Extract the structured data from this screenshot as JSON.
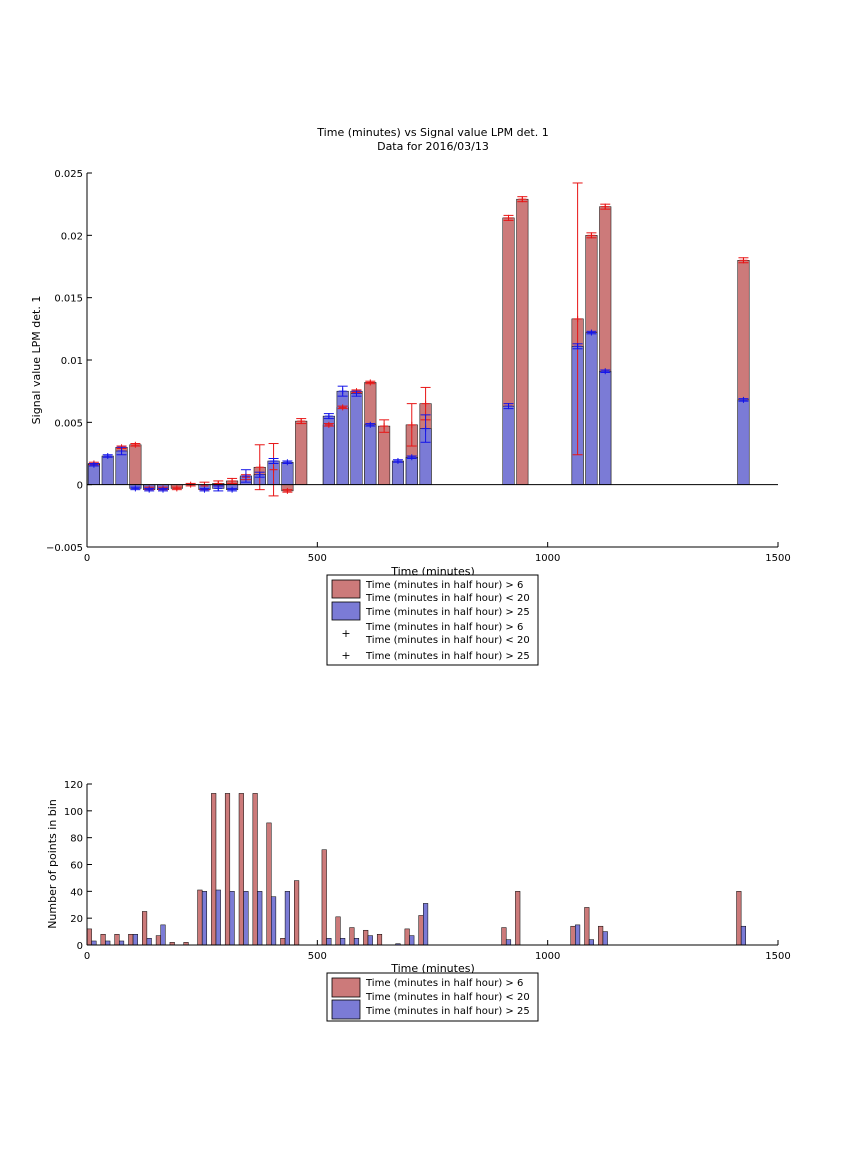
{
  "figure": {
    "background": "#ffffff"
  },
  "colors": {
    "red_bar": "#cc7a7a",
    "blue_bar": "#7b7bd6",
    "red_err": "#e81414",
    "blue_err": "#1414e8",
    "axis": "#000000"
  },
  "chart_data": [
    {
      "type": "bar",
      "title": "Time (minutes) vs Signal value LPM det. 1",
      "subtitle": "Data for 2016/03/13",
      "xlabel": "Time (minutes)",
      "ylabel": "Signal value LPM det. 1",
      "xlim": [
        0,
        1500
      ],
      "ylim": [
        -0.005,
        0.025
      ],
      "xticks": [
        0,
        500,
        1000,
        1500
      ],
      "xtick_labels": [
        "0",
        "500",
        "1000",
        "1500"
      ],
      "yticks": [
        -0.005,
        0,
        0.005,
        0.01,
        0.015,
        0.02,
        0.025
      ],
      "ytick_labels": [
        "−0.005",
        "0",
        "0.005",
        "0.01",
        "0.015",
        "0.02",
        "0.025"
      ],
      "legend_position": "bottom-center (below axes)",
      "legend": [
        {
          "kind": "patch",
          "color_key": "red_bar",
          "lines": [
            "Time (minutes in half hour) > 6",
            "Time (minutes in half hour) < 20"
          ]
        },
        {
          "kind": "patch",
          "color_key": "blue_bar",
          "lines": [
            "Time (minutes in half hour) > 25"
          ]
        },
        {
          "kind": "marker",
          "marker": "+",
          "color_key": "red_err",
          "lines": [
            "Time (minutes in half hour) > 6",
            "Time (minutes in half hour) < 20"
          ]
        },
        {
          "kind": "marker",
          "marker": "+",
          "color_key": "blue_err",
          "lines": [
            "Time (minutes in half hour) > 25"
          ]
        }
      ],
      "bar_width": 25,
      "series": [
        {
          "name": "Time (minutes in half hour) > 6 and < 20",
          "color_key": "red_bar",
          "err_color_key": "red_err",
          "points": [
            {
              "x": 15,
              "y": 0.0017,
              "err": 0.0001
            },
            {
              "x": 75,
              "y": 0.003,
              "err": 0.0001
            },
            {
              "x": 105,
              "y": 0.0032,
              "err": 0.0001
            },
            {
              "x": 135,
              "y": -0.0003,
              "err": 0.0001
            },
            {
              "x": 165,
              "y": -0.0003,
              "err": 0.0001
            },
            {
              "x": 195,
              "y": -0.0003,
              "err": 0.0001
            },
            {
              "x": 225,
              "y": 0.0,
              "err": 0.0001
            },
            {
              "x": 255,
              "y": -0.0001,
              "err": 0.0003
            },
            {
              "x": 285,
              "y": 0.0001,
              "err": 0.0002
            },
            {
              "x": 315,
              "y": 0.0003,
              "err": 0.0002
            },
            {
              "x": 345,
              "y": 0.0006,
              "err": 0.0002
            },
            {
              "x": 375,
              "y": 0.0014,
              "err": 0.0018
            },
            {
              "x": 405,
              "y": 0.0012,
              "err": 0.0021
            },
            {
              "x": 435,
              "y": -0.0005,
              "err": 0.0001
            },
            {
              "x": 465,
              "y": 0.0051,
              "err": 0.0002
            },
            {
              "x": 525,
              "y": 0.0048,
              "err": 0.0001
            },
            {
              "x": 555,
              "y": 0.0062,
              "err": 0.0001
            },
            {
              "x": 585,
              "y": 0.0075,
              "err": 0.0001
            },
            {
              "x": 615,
              "y": 0.0082,
              "err": 0.0001
            },
            {
              "x": 645,
              "y": 0.0047,
              "err": 0.0005
            },
            {
              "x": 705,
              "y": 0.0048,
              "err": 0.0017
            },
            {
              "x": 735,
              "y": 0.0065,
              "err": 0.0013
            },
            {
              "x": 915,
              "y": 0.0214,
              "err": 0.0002
            },
            {
              "x": 945,
              "y": 0.0229,
              "err": 0.0002
            },
            {
              "x": 1065,
              "y": 0.0133,
              "err": 0.0109
            },
            {
              "x": 1095,
              "y": 0.02,
              "err": 0.0002
            },
            {
              "x": 1125,
              "y": 0.0223,
              "err": 0.0002
            },
            {
              "x": 1425,
              "y": 0.018,
              "err": 0.0002
            }
          ]
        },
        {
          "name": "Time (minutes in half hour) > 25",
          "color_key": "blue_bar",
          "err_color_key": "blue_err",
          "points": [
            {
              "x": 15,
              "y": 0.0016,
              "err": 0.0001
            },
            {
              "x": 45,
              "y": 0.0023,
              "err": 0.0001
            },
            {
              "x": 75,
              "y": 0.0027,
              "err": 0.0003
            },
            {
              "x": 105,
              "y": -0.0003,
              "err": 0.0001
            },
            {
              "x": 135,
              "y": -0.0004,
              "err": 0.0001
            },
            {
              "x": 165,
              "y": -0.0004,
              "err": 0.0001
            },
            {
              "x": 255,
              "y": -0.0004,
              "err": 0.0001
            },
            {
              "x": 285,
              "y": -0.0003,
              "err": 0.0002
            },
            {
              "x": 315,
              "y": -0.0004,
              "err": 0.0001
            },
            {
              "x": 345,
              "y": 0.0007,
              "err": 0.0005
            },
            {
              "x": 375,
              "y": 0.0008,
              "err": 0.0002
            },
            {
              "x": 405,
              "y": 0.0019,
              "err": 0.0002
            },
            {
              "x": 435,
              "y": 0.0018,
              "err": 0.0001
            },
            {
              "x": 525,
              "y": 0.0055,
              "err": 0.0002
            },
            {
              "x": 555,
              "y": 0.0075,
              "err": 0.0004
            },
            {
              "x": 585,
              "y": 0.0073,
              "err": 0.0002
            },
            {
              "x": 615,
              "y": 0.0048,
              "err": 0.0001
            },
            {
              "x": 675,
              "y": 0.0019,
              "err": 0.0001
            },
            {
              "x": 705,
              "y": 0.0022,
              "err": 0.0001
            },
            {
              "x": 735,
              "y": 0.0045,
              "err": 0.0011
            },
            {
              "x": 915,
              "y": 0.0063,
              "err": 0.0002
            },
            {
              "x": 1065,
              "y": 0.0111,
              "err": 0.0002
            },
            {
              "x": 1095,
              "y": 0.0122,
              "err": 0.0001
            },
            {
              "x": 1125,
              "y": 0.0091,
              "err": 0.0001
            },
            {
              "x": 1425,
              "y": 0.0068,
              "err": 0.0001
            }
          ]
        }
      ]
    },
    {
      "type": "bar",
      "title": "",
      "xlabel": "Time (minutes)",
      "ylabel": "Number of points in bin",
      "xlim": [
        0,
        1500
      ],
      "ylim": [
        0,
        120
      ],
      "xticks": [
        0,
        500,
        1000,
        1500
      ],
      "xtick_labels": [
        "0",
        "500",
        "1000",
        "1500"
      ],
      "yticks": [
        0,
        20,
        40,
        60,
        80,
        100,
        120
      ],
      "ytick_labels": [
        "0",
        "20",
        "40",
        "60",
        "80",
        "100",
        "120"
      ],
      "legend_position": "bottom-center (below axes)",
      "legend": [
        {
          "kind": "patch",
          "color_key": "red_bar",
          "lines": [
            "Time (minutes in half hour) > 6",
            "Time (minutes in half hour) < 20"
          ]
        },
        {
          "kind": "patch",
          "color_key": "blue_bar",
          "lines": [
            "Time (minutes in half hour) > 25"
          ]
        }
      ],
      "bar_width": 10,
      "series": [
        {
          "name": "Time (minutes in half hour) > 6 and < 20",
          "color_key": "red_bar",
          "points": [
            {
              "x": 5,
              "y": 12
            },
            {
              "x": 35,
              "y": 8
            },
            {
              "x": 65,
              "y": 8
            },
            {
              "x": 95,
              "y": 8
            },
            {
              "x": 125,
              "y": 25
            },
            {
              "x": 155,
              "y": 7
            },
            {
              "x": 185,
              "y": 2
            },
            {
              "x": 215,
              "y": 2
            },
            {
              "x": 245,
              "y": 41
            },
            {
              "x": 275,
              "y": 113
            },
            {
              "x": 305,
              "y": 113
            },
            {
              "x": 335,
              "y": 113
            },
            {
              "x": 365,
              "y": 113
            },
            {
              "x": 395,
              "y": 91
            },
            {
              "x": 425,
              "y": 5
            },
            {
              "x": 455,
              "y": 48
            },
            {
              "x": 515,
              "y": 71
            },
            {
              "x": 545,
              "y": 21
            },
            {
              "x": 575,
              "y": 13
            },
            {
              "x": 605,
              "y": 11
            },
            {
              "x": 635,
              "y": 8
            },
            {
              "x": 695,
              "y": 12
            },
            {
              "x": 725,
              "y": 22
            },
            {
              "x": 905,
              "y": 13
            },
            {
              "x": 935,
              "y": 40
            },
            {
              "x": 1055,
              "y": 14
            },
            {
              "x": 1085,
              "y": 28
            },
            {
              "x": 1115,
              "y": 14
            },
            {
              "x": 1415,
              "y": 40
            }
          ]
        },
        {
          "name": "Time (minutes in half hour) > 25",
          "color_key": "blue_bar",
          "points": [
            {
              "x": 15,
              "y": 3
            },
            {
              "x": 45,
              "y": 3
            },
            {
              "x": 75,
              "y": 3
            },
            {
              "x": 105,
              "y": 8
            },
            {
              "x": 135,
              "y": 5
            },
            {
              "x": 165,
              "y": 15
            },
            {
              "x": 255,
              "y": 40
            },
            {
              "x": 285,
              "y": 41
            },
            {
              "x": 315,
              "y": 40
            },
            {
              "x": 345,
              "y": 40
            },
            {
              "x": 375,
              "y": 40
            },
            {
              "x": 405,
              "y": 36
            },
            {
              "x": 435,
              "y": 40
            },
            {
              "x": 525,
              "y": 5
            },
            {
              "x": 555,
              "y": 5
            },
            {
              "x": 585,
              "y": 5
            },
            {
              "x": 615,
              "y": 7
            },
            {
              "x": 675,
              "y": 1
            },
            {
              "x": 705,
              "y": 7
            },
            {
              "x": 735,
              "y": 31
            },
            {
              "x": 915,
              "y": 4
            },
            {
              "x": 1065,
              "y": 15
            },
            {
              "x": 1095,
              "y": 4
            },
            {
              "x": 1125,
              "y": 10
            },
            {
              "x": 1425,
              "y": 14
            }
          ]
        }
      ]
    }
  ]
}
